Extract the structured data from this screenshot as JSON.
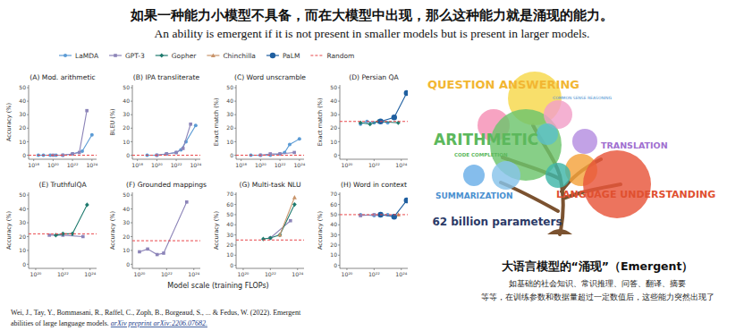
{
  "title": {
    "zh": "如果一种能力小模型不具备，而在大模型中出现，那么这种能力就是涌现的能力。",
    "en": "An ability is emergent if it is not present in smaller models but is present in larger models."
  },
  "legend": [
    {
      "name": "LaMDA",
      "color": "#5b9bd5",
      "marker": "circle",
      "line_style": "solid"
    },
    {
      "name": "GPT-3",
      "color": "#8c84b8",
      "marker": "square",
      "line_style": "solid"
    },
    {
      "name": "Gopher",
      "color": "#1f7a6e",
      "marker": "diamond",
      "line_style": "solid"
    },
    {
      "name": "Chinchilla",
      "color": "#c8946a",
      "marker": "triangle",
      "line_style": "solid"
    },
    {
      "name": "PaLM",
      "color": "#1f5fa0",
      "marker": "big_circle",
      "line_style": "solid"
    },
    {
      "name": "Random",
      "color": "#e8474b",
      "marker": "none",
      "line_style": "dashed"
    }
  ],
  "shared_x_label": "Model scale (training FLOPs)",
  "chart_data": [
    {
      "type": "line",
      "title": "(A) Mod. arithmetic",
      "y_label": "Accuracy (%)",
      "log": "x",
      "grid": false,
      "xlim": [
        3e+17,
        3e+24
      ],
      "xticks": [
        {
          "value": 1e+18,
          "label": "10¹⁸"
        },
        {
          "value": 1e+20,
          "label": "10²⁰"
        },
        {
          "value": 1e+22,
          "label": "10²²"
        },
        {
          "value": 1e+24,
          "label": "10²⁴"
        }
      ],
      "ylim": [
        -3,
        52
      ],
      "yticks": [
        0,
        10,
        20,
        30,
        40,
        50
      ],
      "series": [
        {
          "name": "LaMDA",
          "x": [
            3e+18,
            1e+19,
            5e+19,
            2e+20,
            1e+21,
            1e+22,
            1e+23,
            1e+24
          ],
          "values": [
            0,
            0,
            0,
            0,
            0,
            1,
            3,
            15
          ]
        },
        {
          "name": "GPT-3",
          "x": [
            1e+20,
            1e+21,
            1e+22,
            5e+22,
            3e+23
          ],
          "values": [
            0,
            0,
            1,
            2,
            33
          ]
        },
        {
          "name": "Random",
          "x": [
            3e+17,
            3e+24
          ],
          "values": [
            0,
            0
          ]
        }
      ]
    },
    {
      "type": "line",
      "title": "(B) IPA transliterate",
      "y_label": "BLEU (%)",
      "log": "x",
      "grid": false,
      "xlim": [
        3e+17,
        3e+24
      ],
      "xticks": [
        {
          "value": 1e+18,
          "label": "10¹⁸"
        },
        {
          "value": 1e+20,
          "label": "10²⁰"
        },
        {
          "value": 1e+22,
          "label": "10²²"
        },
        {
          "value": 1e+24,
          "label": "10²⁴"
        }
      ],
      "ylim": [
        -3,
        52
      ],
      "yticks": [
        0,
        10,
        20,
        30,
        40,
        50
      ],
      "series": [
        {
          "name": "LaMDA",
          "x": [
            1e+19,
            1e+20,
            1e+21,
            1e+22,
            3e+22,
            1e+23,
            1e+24
          ],
          "values": [
            0,
            0,
            1,
            2,
            4,
            10,
            22
          ]
        },
        {
          "name": "GPT-3",
          "x": [
            1e+20,
            1e+21,
            1e+22,
            5e+22,
            3e+23
          ],
          "values": [
            0,
            1,
            2,
            5,
            23
          ]
        },
        {
          "name": "Random",
          "x": [
            3e+17,
            3e+24
          ],
          "values": [
            0,
            0
          ]
        }
      ]
    },
    {
      "type": "line",
      "title": "(C) Word unscramble",
      "y_label": "Exact match (%)",
      "log": "x",
      "grid": false,
      "xlim": [
        3e+17,
        3e+24
      ],
      "xticks": [
        {
          "value": 1e+18,
          "label": "10¹⁸"
        },
        {
          "value": 1e+20,
          "label": "10²⁰"
        },
        {
          "value": 1e+22,
          "label": "10²²"
        },
        {
          "value": 1e+24,
          "label": "10²⁴"
        }
      ],
      "ylim": [
        -3,
        52
      ],
      "yticks": [
        0,
        10,
        20,
        30,
        40,
        50
      ],
      "series": [
        {
          "name": "LaMDA",
          "x": [
            1e+19,
            1e+20,
            1e+21,
            1e+22,
            3e+22,
            1e+23,
            1e+24
          ],
          "values": [
            0,
            0,
            0,
            1,
            2,
            8,
            12
          ]
        },
        {
          "name": "GPT-3",
          "x": [
            1e+20,
            1e+21,
            1e+22,
            3e+23
          ],
          "values": [
            0,
            1,
            1,
            2
          ]
        },
        {
          "name": "Random",
          "x": [
            3e+17,
            3e+24
          ],
          "values": [
            0,
            0
          ]
        }
      ]
    },
    {
      "type": "line",
      "title": "(D) Persian QA",
      "y_label": "Exact match (%)",
      "log": "x",
      "grid": false,
      "xlim": [
        3e+19,
        3e+24
      ],
      "xticks": [
        {
          "value": 1e+20,
          "label": "10²⁰"
        },
        {
          "value": 1e+22,
          "label": "10²²"
        },
        {
          "value": 1e+24,
          "label": "10²⁴"
        }
      ],
      "ylim": [
        -3,
        52
      ],
      "yticks": [
        0,
        10,
        20,
        30,
        40,
        50
      ],
      "series": [
        {
          "name": "LaMDA",
          "x": [
            1e+21,
            3e+21,
            1e+22,
            3e+22,
            1e+23
          ],
          "values": [
            23,
            25,
            24,
            25,
            24
          ]
        },
        {
          "name": "Gopher",
          "x": [
            1e+21,
            5e+21,
            2e+22,
            6e+23
          ],
          "values": [
            24,
            23,
            25,
            24
          ]
        },
        {
          "name": "PaLM",
          "x": [
            3e+22,
            3e+23,
            2.5e+24
          ],
          "values": [
            25,
            28,
            46
          ]
        },
        {
          "name": "Random",
          "x": [
            3e+19,
            3e+24
          ],
          "values": [
            25,
            25
          ]
        }
      ]
    },
    {
      "type": "line",
      "title": "(E) TruthfulQA",
      "y_label": "Accuracy (%)",
      "log": "x",
      "grid": false,
      "xlim": [
        3e+19,
        3e+24
      ],
      "xticks": [
        {
          "value": 1e+20,
          "label": "10²⁰"
        },
        {
          "value": 1e+22,
          "label": "10²²"
        },
        {
          "value": 1e+24,
          "label": "10²⁴"
        }
      ],
      "ylim": [
        -3,
        52
      ],
      "yticks": [
        0,
        10,
        20,
        30,
        40,
        50
      ],
      "series": [
        {
          "name": "GPT-3",
          "x": [
            1e+21,
            1e+22,
            3e+23
          ],
          "values": [
            21,
            21,
            20
          ]
        },
        {
          "name": "Gopher",
          "x": [
            3e+21,
            1e+22,
            5e+22,
            6e+23
          ],
          "values": [
            21,
            22,
            22,
            43
          ]
        },
        {
          "name": "Random",
          "x": [
            3e+19,
            3e+24
          ],
          "values": [
            22,
            22
          ]
        }
      ]
    },
    {
      "type": "line",
      "title": "(F) Grounded mappings",
      "y_label": "Accuracy (%)",
      "log": "x",
      "grid": false,
      "xlim": [
        3e+19,
        3e+24
      ],
      "xticks": [
        {
          "value": 1e+20,
          "label": "10²⁰"
        },
        {
          "value": 1e+22,
          "label": "10²²"
        },
        {
          "value": 1e+24,
          "label": "10²⁴"
        }
      ],
      "ylim": [
        -3,
        52
      ],
      "yticks": [
        0,
        10,
        20,
        30,
        40,
        50
      ],
      "series": [
        {
          "name": "GPT-3",
          "x": [
            1e+20,
            4e+20,
            2e+21,
            6e+21,
            3e+23
          ],
          "values": [
            9,
            11,
            7,
            8,
            45
          ]
        },
        {
          "name": "Random",
          "x": [
            3e+19,
            3e+24
          ],
          "values": [
            17,
            17
          ]
        }
      ]
    },
    {
      "type": "line",
      "title": "(G) Multi-task NLU",
      "y_label": "Accuracy (%)",
      "log": "x",
      "grid": false,
      "xlim": [
        3e+19,
        3e+24
      ],
      "xticks": [
        {
          "value": 1e+20,
          "label": "10²⁰"
        },
        {
          "value": 1e+22,
          "label": "10²²"
        },
        {
          "value": 1e+24,
          "label": "10²⁴"
        }
      ],
      "ylim": [
        -3,
        72
      ],
      "yticks": [
        0,
        10,
        20,
        30,
        40,
        50,
        60,
        70
      ],
      "series": [
        {
          "name": "GPT-3",
          "x": [
            1e+22,
            3e+23
          ],
          "values": [
            27,
            44
          ]
        },
        {
          "name": "Gopher",
          "x": [
            3e+21,
            1e+22,
            5e+22,
            6e+23
          ],
          "values": [
            26,
            27,
            30,
            60
          ]
        },
        {
          "name": "Chinchilla",
          "x": [
            5e+22,
            6e+23
          ],
          "values": [
            30,
            67
          ]
        },
        {
          "name": "Random",
          "x": [
            3e+19,
            3e+24
          ],
          "values": [
            25,
            25
          ]
        }
      ]
    },
    {
      "type": "line",
      "title": "(H) Word in context",
      "y_label": "Accuracy (%)",
      "log": "x",
      "grid": false,
      "xlim": [
        3e+19,
        3e+24
      ],
      "xticks": [
        {
          "value": 1e+20,
          "label": "10²⁰"
        },
        {
          "value": 1e+22,
          "label": "10²²"
        },
        {
          "value": 1e+24,
          "label": "10²⁴"
        }
      ],
      "ylim": [
        -3,
        72
      ],
      "yticks": [
        0,
        10,
        20,
        30,
        40,
        50,
        60,
        70
      ],
      "series": [
        {
          "name": "LaMDA",
          "x": [
            1e+21,
            1e+22,
            1e+23
          ],
          "values": [
            50,
            49,
            50
          ]
        },
        {
          "name": "GPT-3",
          "x": [
            1e+21,
            1e+22,
            3e+23
          ],
          "values": [
            49,
            50,
            49
          ]
        },
        {
          "name": "Chinchilla",
          "x": [
            6e+23
          ],
          "values": [
            50
          ]
        },
        {
          "name": "PaLM",
          "x": [
            3e+22,
            3e+23,
            2.5e+24
          ],
          "values": [
            50,
            48,
            64
          ]
        },
        {
          "name": "Random",
          "x": [
            3e+19,
            3e+24
          ],
          "values": [
            50,
            50
          ]
        }
      ]
    }
  ],
  "citation": {
    "lines": [
      "Wei, J., Tay, Y., Bommasani, R., Raffel, C., Zoph, B., Borgeaud, S., ... & Fedus, W. (2022). Emergent",
      "abilities of large language models. "
    ],
    "source": "arXiv preprint arXiv:2206.07682."
  },
  "illustration": {
    "labels": [
      "QUESTION ANSWERING",
      "COMMON SENSE REASONING",
      "ARITHMETIC",
      "CODE COMPLETION",
      "TRANSLATION",
      "SUMMARIZATION",
      "LANGUAGE UNDERSTANDING"
    ],
    "colors": [
      "#f2b632",
      "#4a90d0",
      "#5cb85c",
      "#5cb85c",
      "#a070d0",
      "#4a90d0",
      "#e05030"
    ],
    "caption": "62 billion parameters"
  },
  "caption": {
    "title": "大语言模型的“涌现”（Emergent）",
    "lines": [
      "如基础的社会知识、常识推理、问答、翻译、摘要",
      "等等，在训练参数和数据量超过一定数值后，这些能力突然出现了"
    ]
  }
}
